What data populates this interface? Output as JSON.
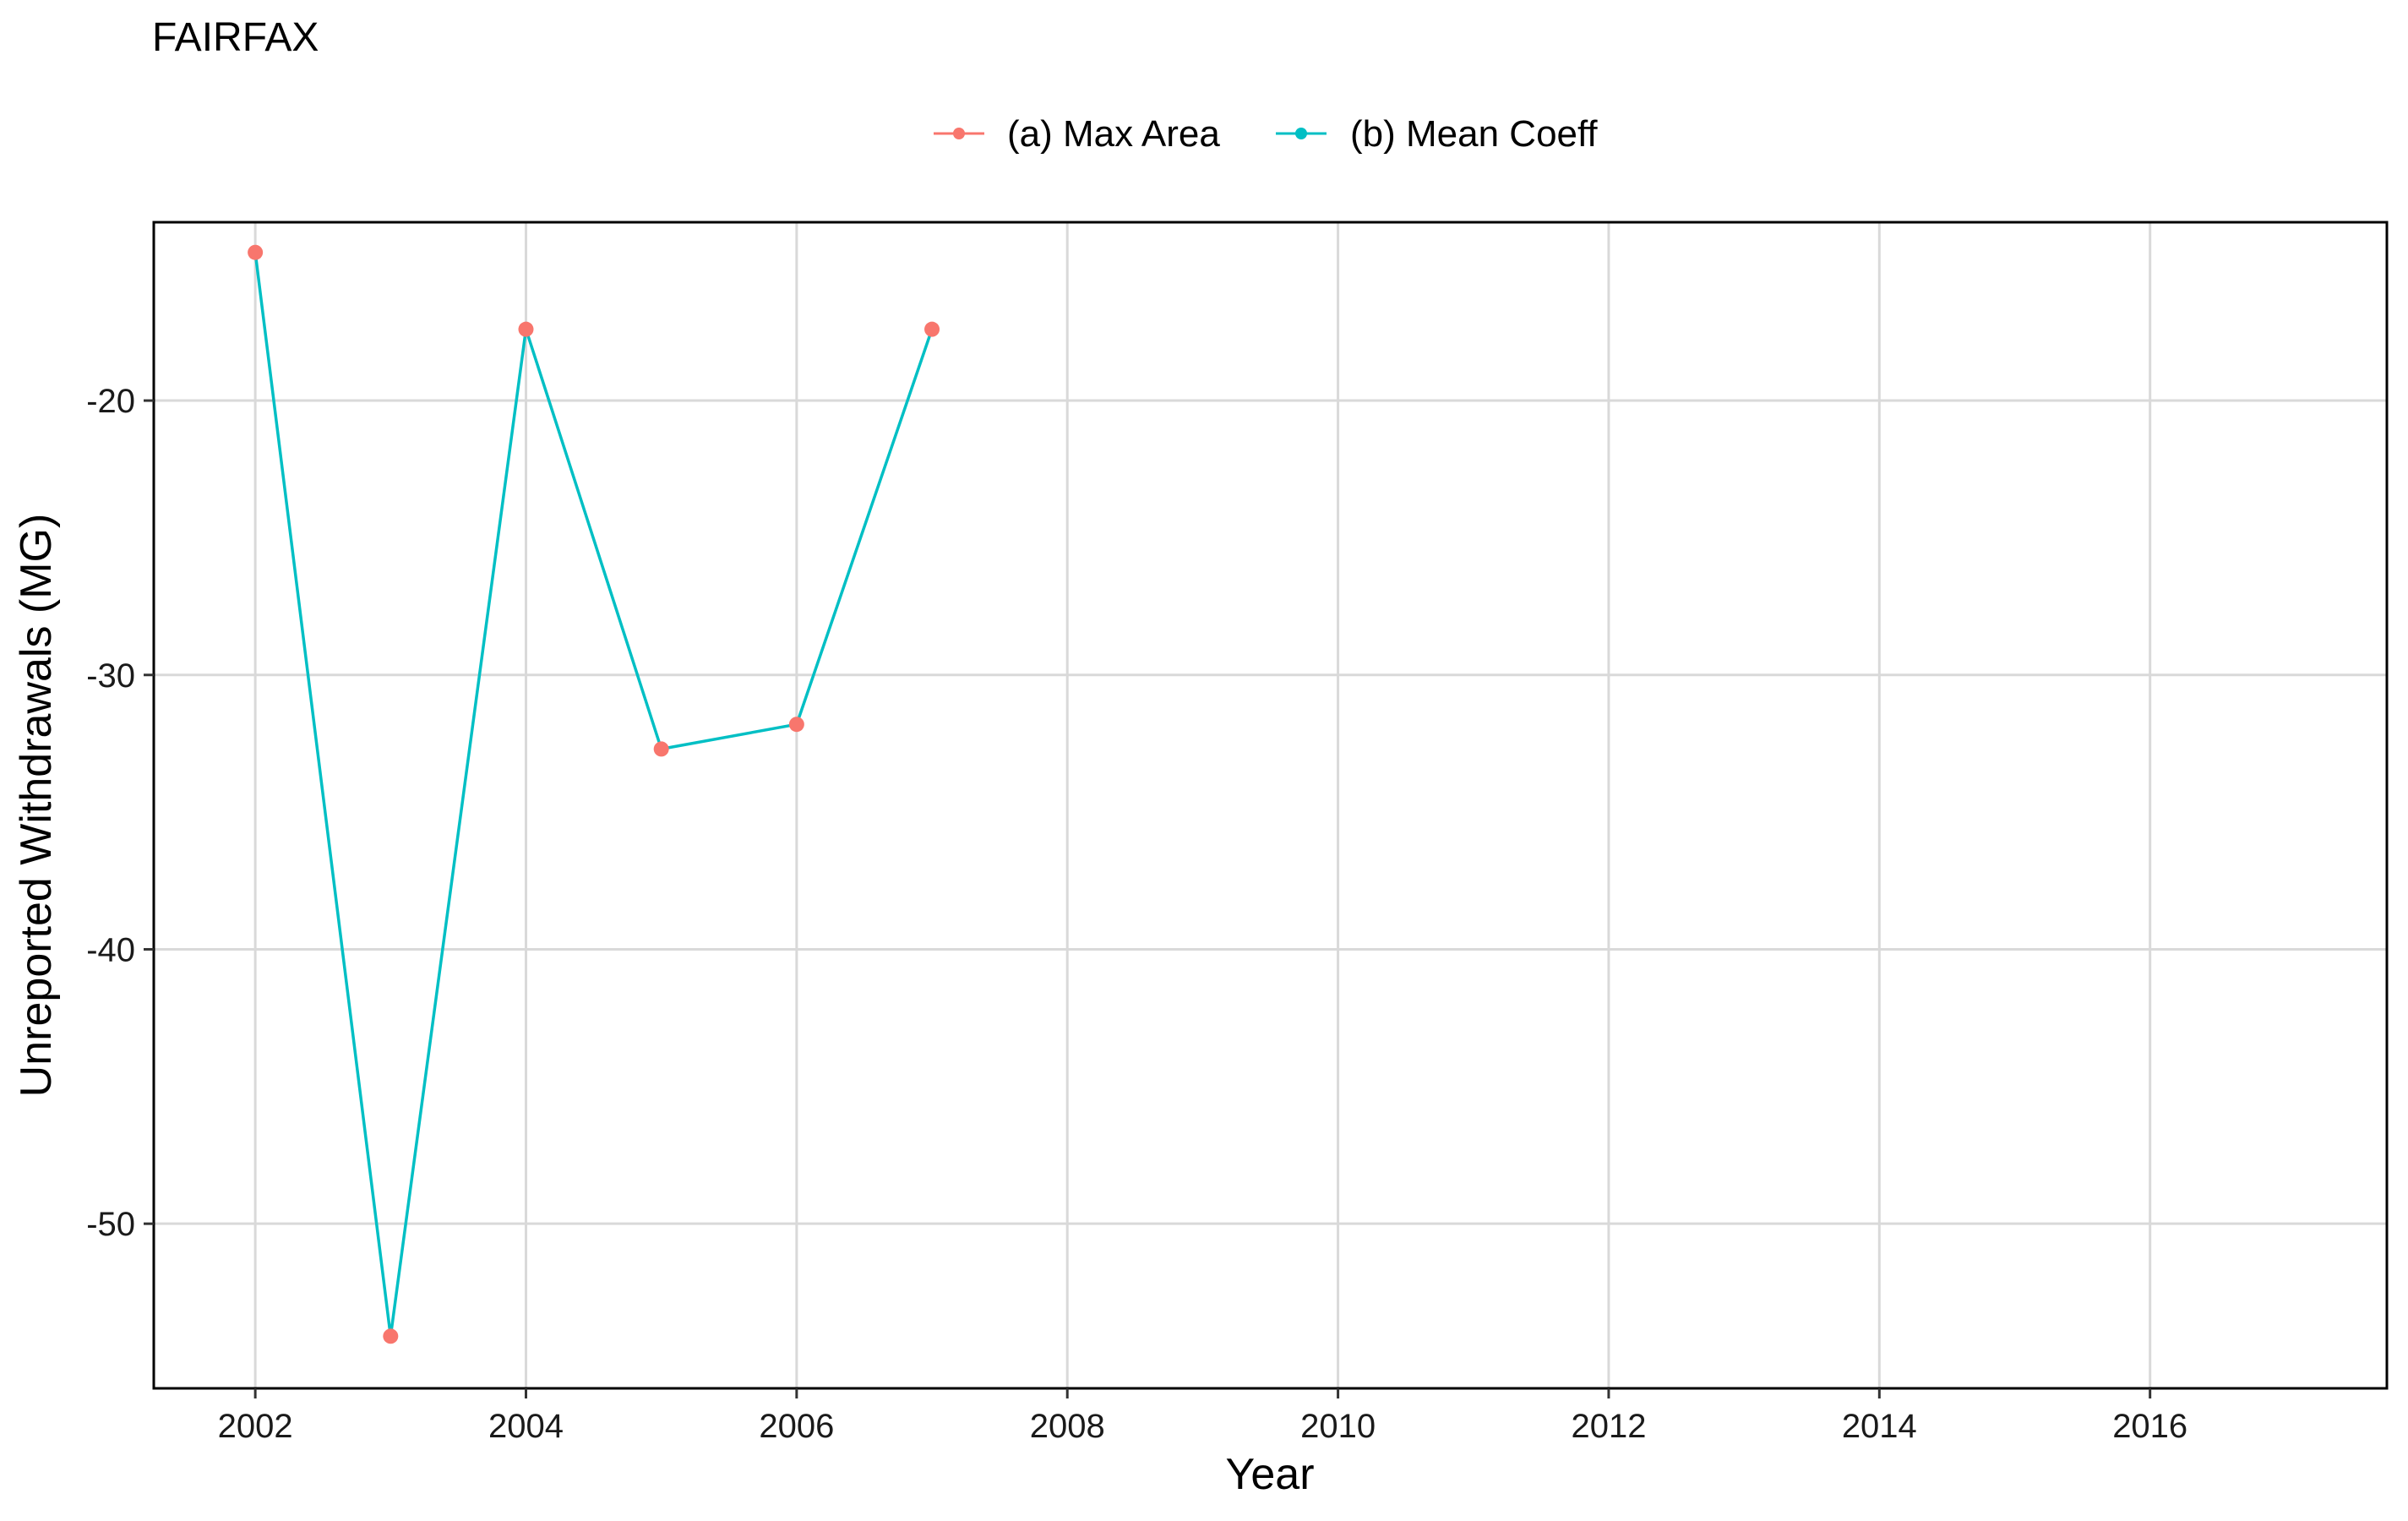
{
  "chart_data": {
    "type": "line",
    "title": "FAIRFAX",
    "xlabel": "Year",
    "ylabel": "Unreported Withdrawals (MG)",
    "xlim": [
      2001.25,
      2017.75
    ],
    "ylim": [
      -56.0,
      -13.5
    ],
    "x_ticks": [
      2002,
      2004,
      2006,
      2008,
      2010,
      2012,
      2014,
      2016
    ],
    "x_tick_labels": [
      "2002",
      "2004",
      "2006",
      "2008",
      "2010",
      "2012",
      "2014",
      "2016"
    ],
    "y_ticks": [
      -50,
      -40,
      -30,
      -20
    ],
    "y_tick_labels": [
      "-50",
      "-40",
      "-30",
      "-20"
    ],
    "grid": true,
    "legend_position": "top",
    "series": [
      {
        "name": "(a) Max Area",
        "color": "#F8766D",
        "style": "points",
        "x": [
          2002,
          2003,
          2004,
          2005,
          2006,
          2007
        ],
        "y": [
          -14.6,
          -54.1,
          -17.4,
          -32.7,
          -31.8,
          -17.4
        ]
      },
      {
        "name": "(b) Mean Coeff",
        "color": "#00BFC4",
        "style": "line",
        "x": [
          2002,
          2003,
          2004,
          2005,
          2006,
          2007
        ],
        "y": [
          -14.6,
          -54.1,
          -17.4,
          -32.7,
          -31.8,
          -17.4
        ]
      }
    ]
  }
}
